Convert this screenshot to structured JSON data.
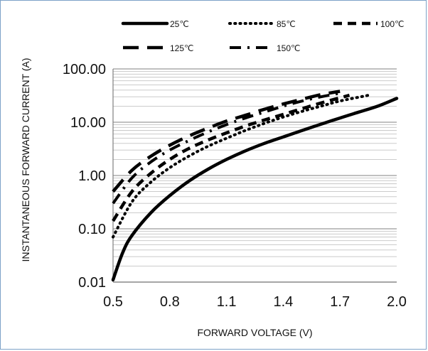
{
  "chart_data": {
    "type": "line",
    "title": "",
    "xlabel": "FORWARD VOLTAGE (V)",
    "ylabel": "INSTANTANEOUS FORWARD CURRENT (A)",
    "x_ticks": [
      "0.5",
      "0.8",
      "1.1",
      "1.4",
      "1.7",
      "2.0"
    ],
    "y_ticks": [
      "100.00",
      "10.00",
      "1.00",
      "0.10",
      "0.01"
    ],
    "xlim": [
      0.5,
      2.0
    ],
    "ylim": [
      0.01,
      100
    ],
    "y_scale": "log",
    "grid": "horizontal minor log gridlines",
    "legend_placement": "top",
    "series": [
      {
        "name": "25℃",
        "style": "solid",
        "x": [
          0.5,
          0.55,
          0.6,
          0.7,
          0.8,
          0.9,
          1.0,
          1.1,
          1.2,
          1.3,
          1.4,
          1.5,
          1.6,
          1.7,
          1.8,
          1.9,
          2.0
        ],
        "y": [
          0.011,
          0.035,
          0.075,
          0.2,
          0.42,
          0.78,
          1.3,
          2.0,
          2.9,
          4.0,
          5.3,
          7.0,
          9.2,
          12,
          15.5,
          20,
          28
        ]
      },
      {
        "name": "85℃",
        "style": "dotted",
        "x": [
          0.5,
          0.6,
          0.7,
          0.8,
          0.9,
          1.0,
          1.1,
          1.2,
          1.3,
          1.4,
          1.5,
          1.6,
          1.7,
          1.85
        ],
        "y": [
          0.07,
          0.32,
          0.75,
          1.4,
          2.3,
          3.5,
          5.0,
          7.0,
          9.5,
          12.5,
          16,
          20,
          25,
          32
        ]
      },
      {
        "name": "100℃",
        "style": "dash",
        "x": [
          0.5,
          0.6,
          0.7,
          0.8,
          0.9,
          1.0,
          1.1,
          1.2,
          1.3,
          1.4,
          1.5,
          1.6,
          1.75
        ],
        "y": [
          0.14,
          0.5,
          1.1,
          2.0,
          3.2,
          4.6,
          6.3,
          8.5,
          11,
          14,
          18,
          23,
          32
        ]
      },
      {
        "name": "125℃",
        "style": "long-dash",
        "x": [
          0.5,
          0.6,
          0.7,
          0.8,
          0.9,
          1.0,
          1.1,
          1.2,
          1.3,
          1.4,
          1.5,
          1.6,
          1.7
        ],
        "y": [
          0.5,
          1.25,
          2.3,
          3.7,
          5.5,
          7.7,
          10.5,
          13.5,
          17.5,
          22,
          27,
          33,
          38
        ]
      },
      {
        "name": "150℃",
        "style": "dash-dot",
        "x": [
          0.5,
          0.6,
          0.7,
          0.8,
          0.9,
          1.0,
          1.1,
          1.2,
          1.3,
          1.4,
          1.5,
          1.6,
          1.7
        ],
        "y": [
          0.3,
          0.9,
          1.8,
          3.0,
          4.5,
          6.5,
          9.0,
          12,
          15.5,
          20,
          25,
          30,
          35
        ]
      }
    ]
  }
}
